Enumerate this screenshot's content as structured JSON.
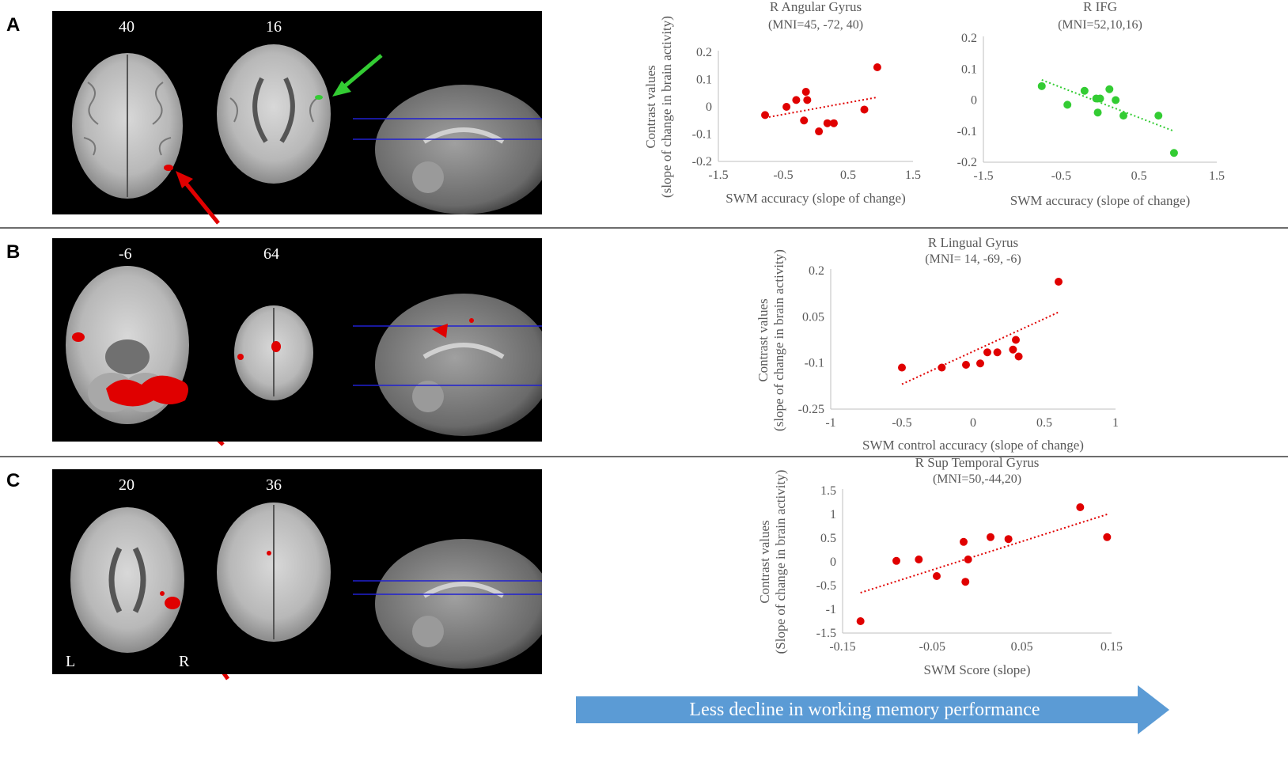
{
  "panels": [
    {
      "letter": "A",
      "slices": [
        "40",
        "16"
      ],
      "lr": [
        "",
        ""
      ]
    },
    {
      "letter": "B",
      "slices": [
        "-6",
        "64"
      ],
      "lr": [
        "",
        ""
      ]
    },
    {
      "letter": "C",
      "slices": [
        "20",
        "36"
      ],
      "lr": [
        "L",
        "R"
      ]
    }
  ],
  "colors": {
    "red": "#e00000",
    "green": "#33cc33",
    "arrow_fill": "#5b9bd5"
  },
  "banner": {
    "text": "Less decline in working memory performance"
  },
  "chart_data": [
    {
      "type": "scatter",
      "title": "R Angular Gyrus",
      "subtitle": "(MNI=45,  -72, 40)",
      "ylabel": "Contrast values",
      "ylabel2": "(slope of change in brain activity)",
      "xlabel": "SWM accuracy (slope of change)",
      "xlim": [
        -1.5,
        1.5
      ],
      "ylim": [
        -0.2,
        0.2
      ],
      "xticks": [
        "-1.5",
        "-0.5",
        "0.5",
        "1.5"
      ],
      "yticks": [
        "0.2",
        "0.1",
        "0",
        "-0.1",
        "-0.2"
      ],
      "color": "#e00000",
      "points": [
        [
          -0.78,
          -0.03
        ],
        [
          -0.45,
          0.0
        ],
        [
          -0.3,
          0.025
        ],
        [
          -0.15,
          0.055
        ],
        [
          -0.13,
          0.025
        ],
        [
          -0.18,
          -0.05
        ],
        [
          0.05,
          -0.09
        ],
        [
          0.18,
          -0.06
        ],
        [
          0.28,
          -0.06
        ],
        [
          0.75,
          -0.01
        ],
        [
          0.95,
          0.145
        ]
      ],
      "trend": [
        [
          -0.78,
          -0.04
        ],
        [
          0.95,
          0.035
        ]
      ],
      "grid": false
    },
    {
      "type": "scatter",
      "title": "R IFG",
      "subtitle": "(MNI=52,10,16)",
      "ylabel": "",
      "ylabel2": "",
      "xlabel": "SWM accuracy (slope of change)",
      "xlim": [
        -1.5,
        1.5
      ],
      "ylim": [
        -0.2,
        0.2
      ],
      "xticks": [
        "-1.5",
        "-0.5",
        "0.5",
        "1.5"
      ],
      "yticks": [
        "0.2",
        "0.1",
        "0",
        "-0.1",
        "-0.2"
      ],
      "color": "#33cc33",
      "points": [
        [
          -0.75,
          0.045
        ],
        [
          -0.42,
          -0.015
        ],
        [
          -0.2,
          0.03
        ],
        [
          -0.05,
          0.005
        ],
        [
          0.0,
          0.005
        ],
        [
          -0.03,
          -0.04
        ],
        [
          0.12,
          0.035
        ],
        [
          0.2,
          0.0
        ],
        [
          0.3,
          -0.05
        ],
        [
          0.75,
          -0.05
        ],
        [
          0.95,
          -0.17
        ]
      ],
      "trend": [
        [
          -0.75,
          0.065
        ],
        [
          0.95,
          -0.1
        ]
      ],
      "grid": false
    },
    {
      "type": "scatter",
      "title": "R Lingual Gyrus",
      "subtitle": "(MNI= 14, -69, -6)",
      "ylabel": "Contrast values",
      "ylabel2": "(slope of change in brain activity)",
      "xlabel": "SWM control accuracy (slope of change)",
      "xlim": [
        -1,
        1
      ],
      "ylim": [
        -0.25,
        0.25
      ],
      "xticks": [
        "-1",
        "-0.5",
        "0",
        "0.5",
        "1"
      ],
      "yticks": [
        "0.2",
        "0.05",
        "-0.1",
        "-0.25"
      ],
      "color": "#e00000",
      "points": [
        [
          -0.5,
          -0.1
        ],
        [
          -0.22,
          -0.1
        ],
        [
          -0.05,
          -0.09
        ],
        [
          0.05,
          -0.085
        ],
        [
          0.1,
          -0.045
        ],
        [
          0.17,
          -0.045
        ],
        [
          0.28,
          -0.035
        ],
        [
          0.3,
          0.0
        ],
        [
          0.32,
          -0.06
        ],
        [
          0.6,
          0.21
        ]
      ],
      "trend": [
        [
          -0.5,
          -0.16
        ],
        [
          0.6,
          0.1
        ]
      ],
      "grid": false
    },
    {
      "type": "scatter",
      "title": "R Sup Temporal Gyrus",
      "subtitle": "(MNI=50,-44,20)",
      "ylabel": "Contrast values",
      "ylabel2": "(Slope of change in brain activity)",
      "xlabel": "SWM Score (slope)",
      "xlim": [
        -0.15,
        0.15
      ],
      "ylim": [
        -1.5,
        1.5
      ],
      "xticks": [
        "-0.15",
        "-0.05",
        "0.05",
        "0.15"
      ],
      "yticks": [
        "1.5",
        "1",
        "0.5",
        "0",
        "-0.5",
        "-1",
        "-1.5"
      ],
      "color": "#e00000",
      "points": [
        [
          -0.13,
          -1.25
        ],
        [
          -0.09,
          0.02
        ],
        [
          -0.065,
          0.05
        ],
        [
          -0.045,
          -0.3
        ],
        [
          -0.015,
          0.42
        ],
        [
          -0.013,
          -0.42
        ],
        [
          -0.01,
          0.05
        ],
        [
          0.015,
          0.52
        ],
        [
          0.035,
          0.48
        ],
        [
          0.115,
          1.15
        ],
        [
          0.145,
          0.52
        ]
      ],
      "trend": [
        [
          -0.13,
          -0.65
        ],
        [
          0.145,
          1.0
        ]
      ],
      "grid": false
    }
  ]
}
